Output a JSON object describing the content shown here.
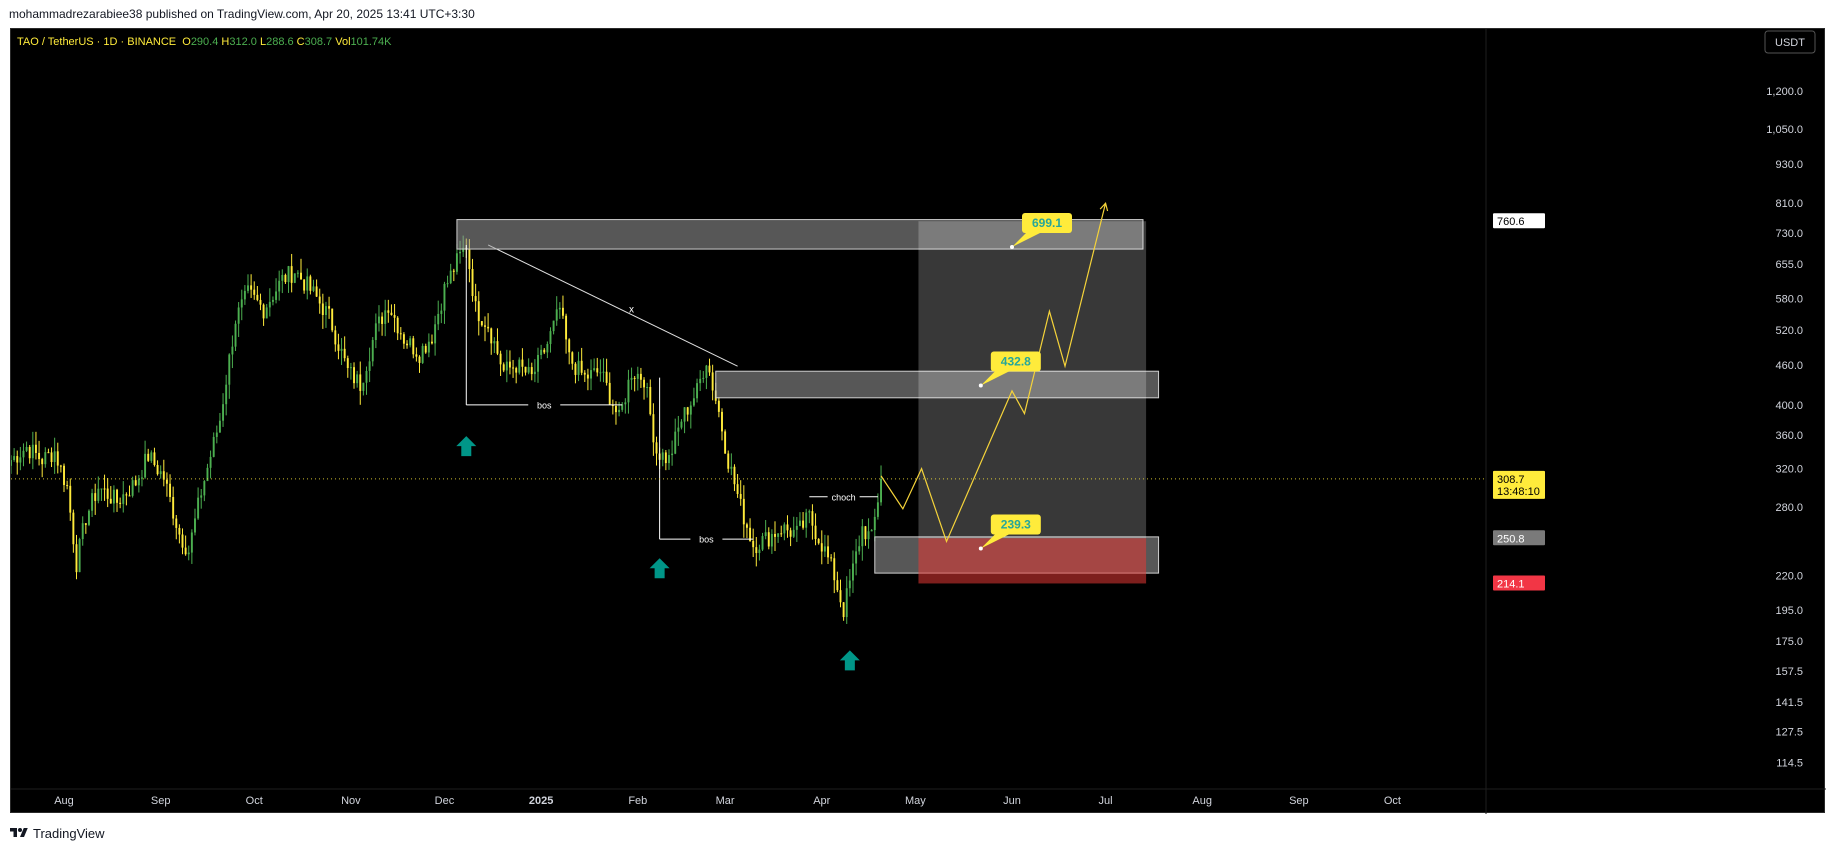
{
  "header": {
    "published_text": "mohammadrezarabiee38 published on TradingView.com, Apr 20, 2025 13:41 UTC+3:30"
  },
  "footer": {
    "brand": "TradingView"
  },
  "colors": {
    "background": "#000000",
    "candle_up": "#4caf50",
    "candle_down": "#ffeb3b",
    "projection": "#f5d33a",
    "zone_fill": "#9e9e9e",
    "stop_zone": "#e53935",
    "arrow": "#009688",
    "last_price_bg": "#ffeb3b",
    "stop_price_bg": "#f23645"
  },
  "chart_data": {
    "type": "candlestick",
    "symbol_line": {
      "symbol": "TAO / TetherUS · 1D · BINANCE",
      "o_label": "O",
      "o_value": "290.4",
      "h_label": "H",
      "h_value": "312.0",
      "l_label": "L",
      "l_value": "288.6",
      "c_label": "C",
      "c_value": "308.7",
      "vol_label": "Vol",
      "vol_value": "101.74K"
    },
    "currency_button": "USDT",
    "y_scale": "log",
    "y_range": [
      108,
      1380
    ],
    "x_range": [
      "2024-07-15",
      "2025-10-31"
    ],
    "y_ticks": [
      "1,200.0",
      "1,050.0",
      "930.0",
      "810.0",
      "730.0",
      "655.0",
      "580.0",
      "520.0",
      "460.0",
      "400.0",
      "360.0",
      "320.0",
      "280.0",
      "220.0",
      "195.0",
      "175.0",
      "157.5",
      "141.5",
      "127.5",
      "114.5"
    ],
    "y_tick_values": [
      1200,
      1050,
      930,
      810,
      730,
      655,
      580,
      520,
      460,
      400,
      360,
      320,
      280,
      220,
      195,
      175,
      157.5,
      141.5,
      127.5,
      114.5
    ],
    "x_ticks": [
      {
        "label": "Aug",
        "date": "2024-08-01"
      },
      {
        "label": "Sep",
        "date": "2024-09-01"
      },
      {
        "label": "Oct",
        "date": "2024-10-01"
      },
      {
        "label": "Nov",
        "date": "2024-11-01"
      },
      {
        "label": "Dec",
        "date": "2024-12-01"
      },
      {
        "label": "2025",
        "date": "2025-01-01"
      },
      {
        "label": "Feb",
        "date": "2025-02-01"
      },
      {
        "label": "Mar",
        "date": "2025-03-01"
      },
      {
        "label": "Apr",
        "date": "2025-04-01"
      },
      {
        "label": "May",
        "date": "2025-05-01"
      },
      {
        "label": "Jun",
        "date": "2025-06-01"
      },
      {
        "label": "Jul",
        "date": "2025-07-01"
      },
      {
        "label": "Aug",
        "date": "2025-08-01"
      },
      {
        "label": "Sep",
        "date": "2025-09-01"
      },
      {
        "label": "Oct",
        "date": "2025-10-01"
      }
    ],
    "price_path": [
      [
        "2024-07-15",
        330
      ],
      [
        "2024-07-20",
        345
      ],
      [
        "2024-07-25",
        330
      ],
      [
        "2024-07-29",
        340
      ],
      [
        "2024-08-02",
        300
      ],
      [
        "2024-08-05",
        230
      ],
      [
        "2024-08-08",
        270
      ],
      [
        "2024-08-12",
        300
      ],
      [
        "2024-08-18",
        285
      ],
      [
        "2024-08-24",
        305
      ],
      [
        "2024-08-28",
        335
      ],
      [
        "2024-09-02",
        310
      ],
      [
        "2024-09-07",
        255
      ],
      [
        "2024-09-10",
        240
      ],
      [
        "2024-09-14",
        295
      ],
      [
        "2024-09-20",
        380
      ],
      [
        "2024-09-25",
        540
      ],
      [
        "2024-09-29",
        590
      ],
      [
        "2024-10-04",
        560
      ],
      [
        "2024-10-10",
        620
      ],
      [
        "2024-10-14",
        640
      ],
      [
        "2024-10-20",
        590
      ],
      [
        "2024-10-25",
        545
      ],
      [
        "2024-10-31",
        450
      ],
      [
        "2024-11-04",
        430
      ],
      [
        "2024-11-09",
        520
      ],
      [
        "2024-11-13",
        570
      ],
      [
        "2024-11-18",
        505
      ],
      [
        "2024-11-23",
        480
      ],
      [
        "2024-11-27",
        510
      ],
      [
        "2024-12-01",
        600
      ],
      [
        "2024-12-05",
        660
      ],
      [
        "2024-12-08",
        700
      ],
      [
        "2024-12-11",
        560
      ],
      [
        "2024-12-15",
        530
      ],
      [
        "2024-12-20",
        450
      ],
      [
        "2024-12-24",
        460
      ],
      [
        "2024-12-29",
        440
      ],
      [
        "2025-01-03",
        495
      ],
      [
        "2025-01-07",
        560
      ],
      [
        "2025-01-10",
        470
      ],
      [
        "2025-01-15",
        440
      ],
      [
        "2025-01-20",
        450
      ],
      [
        "2025-01-26",
        380
      ],
      [
        "2025-01-30",
        450
      ],
      [
        "2025-02-03",
        440
      ],
      [
        "2025-02-07",
        340
      ],
      [
        "2025-02-11",
        330
      ],
      [
        "2025-02-15",
        380
      ],
      [
        "2025-02-20",
        420
      ],
      [
        "2025-02-23",
        470
      ],
      [
        "2025-02-27",
        390
      ],
      [
        "2025-03-02",
        330
      ],
      [
        "2025-03-06",
        280
      ],
      [
        "2025-03-10",
        245
      ],
      [
        "2025-03-14",
        250
      ],
      [
        "2025-03-19",
        260
      ],
      [
        "2025-03-24",
        255
      ],
      [
        "2025-03-28",
        270
      ],
      [
        "2025-04-02",
        240
      ],
      [
        "2025-04-05",
        220
      ],
      [
        "2025-04-08",
        195
      ],
      [
        "2025-04-11",
        225
      ],
      [
        "2025-04-14",
        260
      ],
      [
        "2025-04-17",
        250
      ],
      [
        "2025-04-20",
        308.7
      ]
    ],
    "last_close": 308.7,
    "zones": [
      {
        "from": "2024-12-05",
        "to": "2025-07-13",
        "top": 765,
        "bottom": 690
      },
      {
        "from": "2025-02-26",
        "to": "2025-07-18",
        "top": 450,
        "bottom": 410
      },
      {
        "from": "2025-04-18",
        "to": "2025-07-18",
        "top": 252,
        "bottom": 222
      }
    ],
    "position_box": {
      "from": "2025-05-02",
      "to": "2025-07-14",
      "top": 760.6,
      "entry": 250.8,
      "stop": 214.1
    },
    "trendline": {
      "from": [
        "2024-12-15",
        700
      ],
      "to": [
        "2025-03-05",
        458
      ],
      "label": "x",
      "label_at": [
        "2025-01-30",
        560
      ]
    },
    "structure_lines": [
      {
        "label": "bos",
        "from": [
          "2024-12-08",
          400
        ],
        "to": [
          "2025-01-27",
          400
        ],
        "start_top": 700
      },
      {
        "label": "bos",
        "from": [
          "2025-02-08",
          250
        ],
        "to": [
          "2025-03-10",
          250
        ],
        "start_top": 440
      },
      {
        "label": "choch",
        "from": [
          "2025-03-28",
          290
        ],
        "to": [
          "2025-04-19",
          290
        ]
      }
    ],
    "projection_path": [
      [
        "2025-04-20",
        312
      ],
      [
        "2025-04-27",
        278
      ],
      [
        "2025-05-03",
        320
      ],
      [
        "2025-05-11",
        248
      ],
      [
        "2025-06-01",
        420
      ],
      [
        "2025-06-05",
        388
      ],
      [
        "2025-06-13",
        555
      ],
      [
        "2025-06-18",
        458
      ],
      [
        "2025-07-01",
        810
      ]
    ],
    "targets": [
      {
        "label": "699.1",
        "anchor": [
          "2025-06-01",
          695
        ]
      },
      {
        "label": "432.8",
        "anchor": [
          "2025-05-22",
          428
        ]
      },
      {
        "label": "239.3",
        "anchor": [
          "2025-05-22",
          242
        ]
      }
    ],
    "up_arrows": [
      [
        "2024-12-08",
        345
      ],
      [
        "2025-02-08",
        225
      ],
      [
        "2025-04-10",
        163
      ]
    ],
    "price_labels": [
      {
        "text": "760.6",
        "value": 760.6,
        "style": "white"
      },
      {
        "text": "308.7",
        "sub": "13:48:10",
        "value": 308.7,
        "style": "yellow"
      },
      {
        "text": "250.8",
        "value": 250.8,
        "style": "gray"
      },
      {
        "text": "214.1",
        "value": 214.1,
        "style": "red"
      }
    ]
  }
}
